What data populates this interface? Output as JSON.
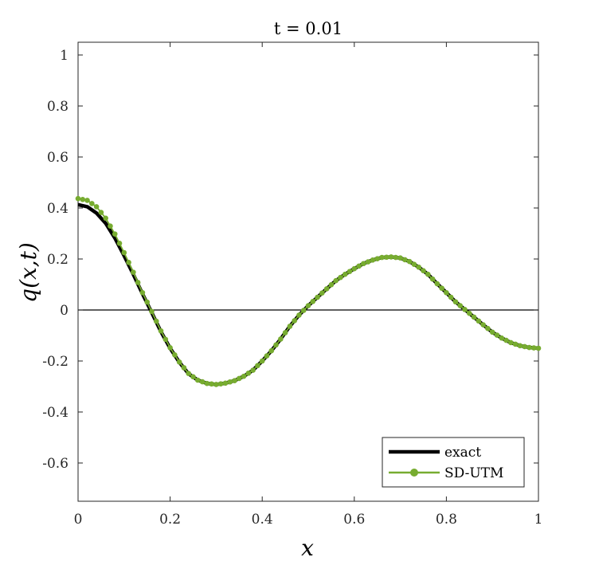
{
  "chart_data": {
    "type": "line",
    "title": "t = 0.01",
    "xlabel": "x",
    "ylabel": "q(x,t)",
    "xlim": [
      0,
      1
    ],
    "ylim": [
      -0.75,
      1.05
    ],
    "xticks": [
      0,
      0.2,
      0.4,
      0.6,
      0.8,
      1
    ],
    "xtick_labels": [
      "0",
      "0.2",
      "0.4",
      "0.6",
      "0.8",
      "1"
    ],
    "yticks": [
      -0.6,
      -0.4,
      -0.2,
      0,
      0.2,
      0.4,
      0.6,
      0.8,
      1
    ],
    "ytick_labels": [
      "-0.6",
      "-0.4",
      "-0.2",
      "0",
      "0.2",
      "0.4",
      "0.6",
      "0.8",
      "1"
    ],
    "zero_line": true,
    "grid": false,
    "legend_position": "bottom-right",
    "series": [
      {
        "name": "exact",
        "color": "#000000",
        "marker": "none",
        "x": [
          0,
          0.02,
          0.04,
          0.06,
          0.08,
          0.1,
          0.12,
          0.14,
          0.16,
          0.18,
          0.2,
          0.22,
          0.24,
          0.26,
          0.28,
          0.3,
          0.32,
          0.34,
          0.36,
          0.38,
          0.4,
          0.42,
          0.44,
          0.46,
          0.48,
          0.5,
          0.52,
          0.54,
          0.56,
          0.58,
          0.6,
          0.62,
          0.64,
          0.66,
          0.68,
          0.7,
          0.72,
          0.74,
          0.76,
          0.78,
          0.8,
          0.82,
          0.84,
          0.86,
          0.88,
          0.9,
          0.92,
          0.94,
          0.96,
          0.98,
          1
        ],
        "values": [
          0.413,
          0.405,
          0.38,
          0.34,
          0.282,
          0.213,
          0.14,
          0.063,
          -0.01,
          -0.085,
          -0.15,
          -0.205,
          -0.25,
          -0.275,
          -0.288,
          -0.292,
          -0.287,
          -0.277,
          -0.26,
          -0.236,
          -0.2,
          -0.16,
          -0.114,
          -0.064,
          -0.02,
          0.017,
          0.05,
          0.083,
          0.115,
          0.14,
          0.162,
          0.182,
          0.196,
          0.206,
          0.208,
          0.204,
          0.19,
          0.168,
          0.14,
          0.103,
          0.068,
          0.032,
          0.002,
          -0.028,
          -0.058,
          -0.087,
          -0.11,
          -0.128,
          -0.14,
          -0.147,
          -0.15
        ]
      },
      {
        "name": "SD-UTM",
        "color": "#77AC30",
        "marker": "circle",
        "x": [
          0,
          0.02,
          0.04,
          0.06,
          0.08,
          0.1,
          0.12,
          0.14,
          0.16,
          0.18,
          0.2,
          0.22,
          0.24,
          0.26,
          0.28,
          0.3,
          0.32,
          0.34,
          0.36,
          0.38,
          0.4,
          0.42,
          0.44,
          0.46,
          0.48,
          0.5,
          0.52,
          0.54,
          0.56,
          0.58,
          0.6,
          0.62,
          0.64,
          0.66,
          0.68,
          0.7,
          0.72,
          0.74,
          0.76,
          0.78,
          0.8,
          0.82,
          0.84,
          0.86,
          0.88,
          0.9,
          0.92,
          0.94,
          0.96,
          0.98,
          1
        ],
        "values": [
          0.437,
          0.43,
          0.405,
          0.36,
          0.298,
          0.225,
          0.148,
          0.068,
          -0.006,
          -0.082,
          -0.148,
          -0.204,
          -0.249,
          -0.275,
          -0.288,
          -0.292,
          -0.287,
          -0.277,
          -0.26,
          -0.236,
          -0.2,
          -0.16,
          -0.114,
          -0.064,
          -0.02,
          0.017,
          0.05,
          0.083,
          0.115,
          0.14,
          0.162,
          0.182,
          0.196,
          0.206,
          0.208,
          0.204,
          0.19,
          0.168,
          0.14,
          0.103,
          0.068,
          0.032,
          0.002,
          -0.028,
          -0.058,
          -0.087,
          -0.11,
          -0.128,
          -0.14,
          -0.147,
          -0.15
        ]
      }
    ]
  }
}
